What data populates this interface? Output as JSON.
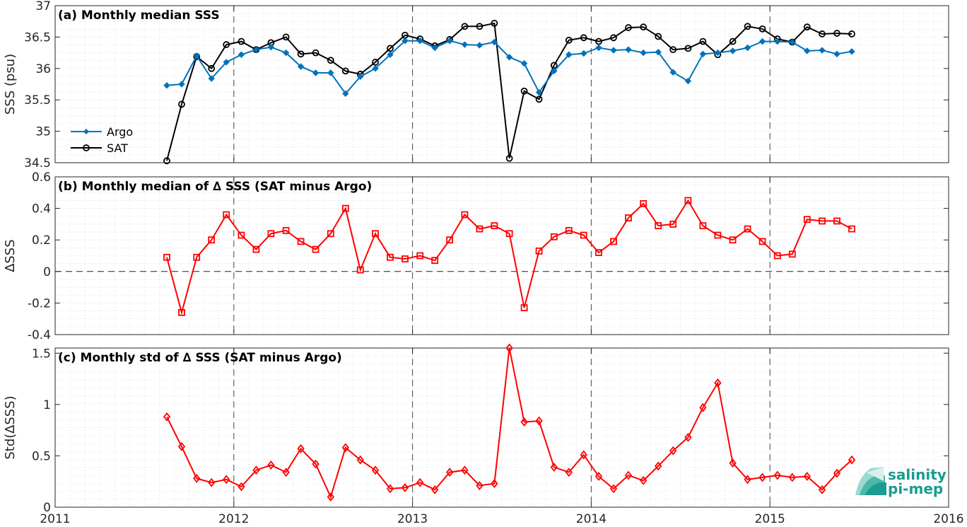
{
  "chart_data": [
    {
      "type": "line",
      "title": "(a) Monthly median SSS",
      "xlabel": "",
      "ylabel": "SSS (psu)",
      "xlim": [
        2011,
        2016
      ],
      "ylim": [
        34.5,
        37
      ],
      "yticks": [
        "34.5",
        "35",
        "35.5",
        "36",
        "36.5",
        "37"
      ],
      "ytick_values": [
        34.5,
        35,
        35.5,
        36,
        36.5,
        37
      ],
      "xticks": [],
      "grid": "minor dotted",
      "legend": "left",
      "x": [
        2011.625,
        2011.708,
        2011.792,
        2011.875,
        2011.958,
        2012.042,
        2012.125,
        2012.208,
        2012.292,
        2012.375,
        2012.458,
        2012.542,
        2012.625,
        2012.708,
        2012.792,
        2012.875,
        2012.958,
        2013.042,
        2013.125,
        2013.208,
        2013.292,
        2013.375,
        2013.458,
        2013.542,
        2013.625,
        2013.708,
        2013.792,
        2013.875,
        2013.958,
        2014.042,
        2014.125,
        2014.208,
        2014.292,
        2014.375,
        2014.458,
        2014.542,
        2014.625,
        2014.708,
        2014.792,
        2014.875,
        2014.958,
        2015.042,
        2015.125,
        2015.208,
        2015.292,
        2015.375,
        2015.458
      ],
      "series": [
        {
          "name": "Argo",
          "color": "#0072BD",
          "marker": "diamond-filled",
          "values": [
            35.73,
            35.75,
            36.2,
            35.84,
            36.1,
            36.22,
            36.3,
            36.34,
            36.25,
            36.03,
            35.93,
            35.93,
            35.6,
            35.87,
            36.0,
            36.22,
            36.44,
            36.44,
            36.33,
            36.44,
            36.38,
            36.37,
            36.42,
            36.18,
            36.08,
            35.62,
            35.96,
            36.22,
            36.24,
            36.33,
            36.29,
            36.3,
            36.25,
            36.26,
            35.94,
            35.8,
            36.23,
            36.25,
            36.28,
            36.33,
            36.43,
            36.43,
            36.42,
            36.28,
            36.29,
            36.23,
            36.27
          ]
        },
        {
          "name": "SAT",
          "color": "#000000",
          "marker": "circle-open",
          "values": [
            34.53,
            35.43,
            36.19,
            36.0,
            36.38,
            36.43,
            36.3,
            36.41,
            36.5,
            36.23,
            36.25,
            36.13,
            35.96,
            35.91,
            36.1,
            36.32,
            36.53,
            36.47,
            36.36,
            36.46,
            36.67,
            36.67,
            36.72,
            34.57,
            35.64,
            35.51,
            36.05,
            36.45,
            36.49,
            36.43,
            36.49,
            36.65,
            36.66,
            36.51,
            36.3,
            36.32,
            36.43,
            36.22,
            36.43,
            36.67,
            36.63,
            36.47,
            36.42,
            36.66,
            36.55,
            36.56,
            36.55
          ]
        }
      ]
    },
    {
      "type": "line",
      "title": "(b) Monthly median of ∆ SSS (SAT minus Argo)",
      "xlabel": "",
      "ylabel": "∆SSS",
      "xlim": [
        2011,
        2016
      ],
      "ylim": [
        -0.4,
        0.6
      ],
      "yticks": [
        "-0.4",
        "-0.2",
        "0",
        "0.2",
        "0.4",
        "0.6"
      ],
      "ytick_values": [
        -0.4,
        -0.2,
        0,
        0.2,
        0.4,
        0.6
      ],
      "xticks": [],
      "grid": "minor dotted",
      "x": [
        2011.625,
        2011.708,
        2011.792,
        2011.875,
        2011.958,
        2012.042,
        2012.125,
        2012.208,
        2012.292,
        2012.375,
        2012.458,
        2012.542,
        2012.625,
        2012.708,
        2012.792,
        2012.875,
        2012.958,
        2013.042,
        2013.125,
        2013.208,
        2013.292,
        2013.375,
        2013.458,
        2013.542,
        2013.625,
        2013.708,
        2013.792,
        2013.875,
        2013.958,
        2014.042,
        2014.125,
        2014.208,
        2014.292,
        2014.375,
        2014.458,
        2014.542,
        2014.625,
        2014.708,
        2014.792,
        2014.875,
        2014.958,
        2015.042,
        2015.125,
        2015.208,
        2015.292,
        2015.375,
        2015.458
      ],
      "series": [
        {
          "name": "",
          "color": "#FF0000",
          "marker": "square-open",
          "values": [
            0.09,
            -0.26,
            0.09,
            0.2,
            0.36,
            0.23,
            0.14,
            0.24,
            0.26,
            0.19,
            0.14,
            0.24,
            0.4,
            0.01,
            0.24,
            0.09,
            0.08,
            0.1,
            0.07,
            0.2,
            0.36,
            0.27,
            0.29,
            0.24,
            -0.23,
            0.13,
            0.22,
            0.26,
            0.23,
            0.12,
            0.19,
            0.34,
            0.43,
            0.29,
            0.3,
            0.45,
            0.29,
            0.23,
            0.2,
            0.27,
            0.19,
            0.1,
            0.11,
            0.33,
            0.32,
            0.32,
            0.27
          ]
        }
      ],
      "reference_line": 0
    },
    {
      "type": "line",
      "title": "(c) Monthly std of ∆ SSS (SAT minus Argo)",
      "xlabel": "",
      "ylabel": "Std(∆SSS)",
      "xlim": [
        2011,
        2016
      ],
      "ylim": [
        0,
        1.55
      ],
      "yticks": [
        "0",
        "0.5",
        "1",
        "1.5"
      ],
      "ytick_values": [
        0,
        0.5,
        1,
        1.5
      ],
      "xticks": [
        "2011",
        "2012",
        "2013",
        "2014",
        "2015",
        "2016"
      ],
      "xtick_values": [
        2011,
        2012,
        2013,
        2014,
        2015,
        2016
      ],
      "grid": "minor dotted",
      "x": [
        2011.625,
        2011.708,
        2011.792,
        2011.875,
        2011.958,
        2012.042,
        2012.125,
        2012.208,
        2012.292,
        2012.375,
        2012.458,
        2012.542,
        2012.625,
        2012.708,
        2012.792,
        2012.875,
        2012.958,
        2013.042,
        2013.125,
        2013.208,
        2013.292,
        2013.375,
        2013.458,
        2013.542,
        2013.625,
        2013.708,
        2013.792,
        2013.875,
        2013.958,
        2014.042,
        2014.125,
        2014.208,
        2014.292,
        2014.375,
        2014.458,
        2014.542,
        2014.625,
        2014.708,
        2014.792,
        2014.875,
        2014.958,
        2015.042,
        2015.125,
        2015.208,
        2015.292,
        2015.375,
        2015.458
      ],
      "series": [
        {
          "name": "",
          "color": "#FF0000",
          "marker": "diamond-open",
          "values": [
            0.88,
            0.59,
            0.28,
            0.24,
            0.27,
            0.2,
            0.36,
            0.41,
            0.34,
            0.57,
            0.42,
            0.1,
            0.58,
            0.46,
            0.36,
            0.18,
            0.19,
            0.24,
            0.17,
            0.34,
            0.36,
            0.21,
            0.23,
            1.55,
            0.83,
            0.84,
            0.39,
            0.34,
            0.51,
            0.3,
            0.18,
            0.31,
            0.26,
            0.4,
            0.55,
            0.68,
            0.97,
            1.21,
            0.43,
            0.27,
            0.29,
            0.31,
            0.29,
            0.3,
            0.17,
            0.33,
            0.46
          ]
        }
      ]
    }
  ],
  "year_dividers": [
    2012,
    2013,
    2014,
    2015
  ],
  "logo": {
    "line1": "salinity",
    "line2": "pi-mep"
  }
}
